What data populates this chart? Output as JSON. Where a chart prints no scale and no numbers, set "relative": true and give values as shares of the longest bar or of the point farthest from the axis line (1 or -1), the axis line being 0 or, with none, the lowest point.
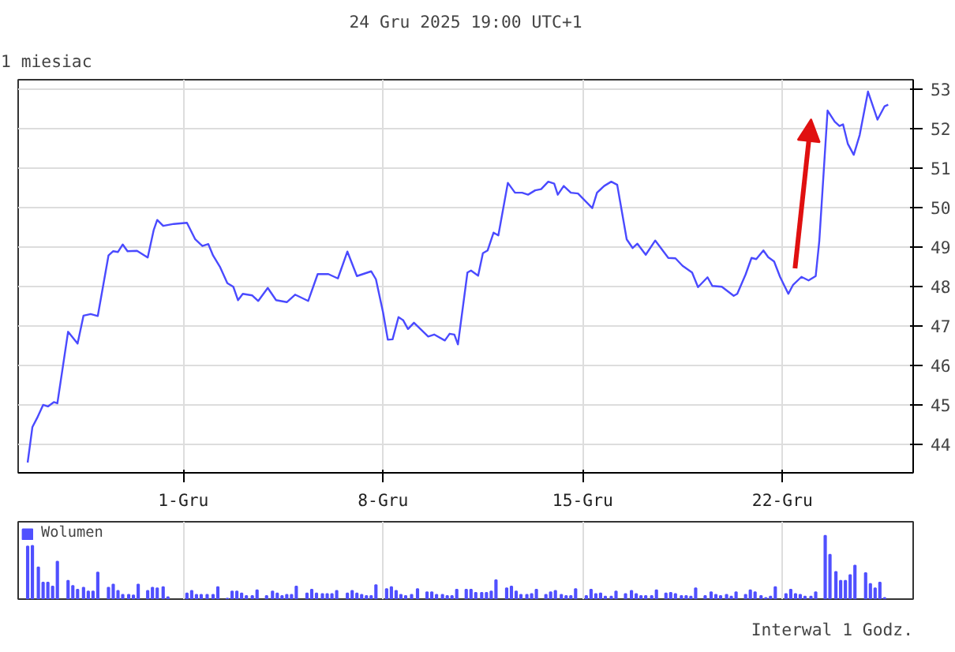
{
  "chart_data": [
    {
      "type": "line",
      "title": "1 miesiac",
      "subtitle": "24 Gru 2025 19:00 UTC+1",
      "color": "#4a4aff",
      "x": [
        "2025-11-25T13:00",
        "2025-11-25T17:00",
        "2025-11-25T21:00",
        "2025-11-26T02:00",
        "2025-11-26T06:00",
        "2025-11-26T11:00",
        "2025-11-26T14:00",
        "2025-11-26T23:00",
        "2025-11-27T07:00",
        "2025-11-27T12:00",
        "2025-11-27T18:00",
        "2025-11-28T00:00",
        "2025-11-28T09:00",
        "2025-11-28T13:00",
        "2025-11-28T17:00",
        "2025-11-28T21:00",
        "2025-11-29T01:00",
        "2025-11-29T09:00",
        "2025-11-29T18:00",
        "2025-11-29T23:00",
        "2025-11-30T02:00",
        "2025-11-30T07:00",
        "2025-11-30T16:00",
        "2025-12-01T03:00",
        "2025-12-01T10:00",
        "2025-12-01T16:00",
        "2025-12-01T21:00",
        "2025-12-02T01:00",
        "2025-12-02T07:00",
        "2025-12-02T13:00",
        "2025-12-02T18:00",
        "2025-12-02T22:00",
        "2025-12-03T02:00",
        "2025-12-03T10:00",
        "2025-12-03T15:00",
        "2025-12-03T23:00",
        "2025-12-04T06:00",
        "2025-12-04T15:00",
        "2025-12-04T22:00",
        "2025-12-05T09:00",
        "2025-12-05T17:00",
        "2025-12-06T02:00",
        "2025-12-06T10:00",
        "2025-12-06T18:00",
        "2025-12-07T02:00",
        "2025-12-07T14:00",
        "2025-12-07T18:00",
        "2025-12-08T00:00",
        "2025-12-08T04:00",
        "2025-12-08T08:00",
        "2025-12-08T13:00",
        "2025-12-08T17:00",
        "2025-12-08T21:00",
        "2025-12-09T02:00",
        "2025-12-09T14:00",
        "2025-12-09T19:00",
        "2025-12-10T04:00",
        "2025-12-10T08:00",
        "2025-12-10T12:00",
        "2025-12-10T15:00",
        "2025-12-10T23:00",
        "2025-12-11T02:00",
        "2025-12-11T08:00",
        "2025-12-11T12:00",
        "2025-12-11T16:00",
        "2025-12-11T21:00",
        "2025-12-12T01:00",
        "2025-12-12T09:00",
        "2025-12-12T15:00",
        "2025-12-12T21:00",
        "2025-12-13T02:00",
        "2025-12-13T08:00",
        "2025-12-13T13:00",
        "2025-12-13T19:00",
        "2025-12-14T00:00",
        "2025-12-14T03:00",
        "2025-12-14T08:00",
        "2025-12-14T14:00",
        "2025-12-14T20:00",
        "2025-12-15T08:00",
        "2025-12-15T12:00",
        "2025-12-15T18:00",
        "2025-12-16T00:00",
        "2025-12-16T05:00",
        "2025-12-16T13:00",
        "2025-12-16T18:00",
        "2025-12-16T22:00",
        "2025-12-17T05:00",
        "2025-12-17T13:00",
        "2025-12-18T00:00",
        "2025-12-18T06:00",
        "2025-12-18T12:00",
        "2025-12-18T20:00",
        "2025-12-19T01:00",
        "2025-12-19T09:00",
        "2025-12-19T13:00",
        "2025-12-19T21:00",
        "2025-12-20T07:00",
        "2025-12-20T10:00",
        "2025-12-20T17:00",
        "2025-12-20T22:00",
        "2025-12-21T02:00",
        "2025-12-21T08:00",
        "2025-12-21T12:00",
        "2025-12-21T17:00",
        "2025-12-21T22:00",
        "2025-12-22T05:00",
        "2025-12-22T09:00",
        "2025-12-22T16:00",
        "2025-12-22T22:00",
        "2025-12-23T04:00",
        "2025-12-23T07:00",
        "2025-12-23T14:00",
        "2025-12-23T20:00",
        "2025-12-24T00:00",
        "2025-12-24T03:00",
        "2025-12-24T07:00",
        "2025-12-24T12:00",
        "2025-12-24T17:00",
        "2025-12-25T00:00",
        "2025-12-25T08:00",
        "2025-12-25T14:00",
        "2025-12-25T17:00"
      ],
      "values": [
        43.55,
        44.45,
        44.68,
        45.01,
        44.97,
        45.08,
        45.05,
        46.86,
        46.56,
        47.27,
        47.31,
        47.26,
        48.79,
        48.9,
        48.88,
        49.07,
        48.9,
        48.91,
        48.74,
        49.43,
        49.69,
        49.54,
        49.59,
        49.62,
        49.2,
        49.03,
        49.08,
        48.79,
        48.49,
        48.09,
        48.0,
        47.66,
        47.82,
        47.78,
        47.64,
        47.97,
        47.66,
        47.61,
        47.8,
        47.64,
        48.32,
        48.32,
        48.21,
        48.89,
        48.27,
        48.39,
        48.19,
        47.35,
        46.66,
        46.67,
        47.23,
        47.15,
        46.93,
        47.09,
        46.74,
        46.79,
        46.64,
        46.81,
        46.79,
        46.54,
        48.36,
        48.41,
        48.28,
        48.85,
        48.92,
        49.37,
        49.3,
        50.63,
        50.38,
        50.38,
        50.33,
        50.44,
        50.47,
        50.66,
        50.61,
        50.33,
        50.55,
        50.38,
        50.36,
        49.99,
        50.38,
        50.55,
        50.66,
        50.58,
        49.2,
        48.98,
        49.09,
        48.81,
        49.17,
        48.73,
        48.72,
        48.53,
        48.36,
        47.99,
        48.24,
        48.02,
        48.0,
        47.77,
        47.82,
        48.31,
        48.73,
        48.7,
        48.92,
        48.75,
        48.64,
        48.25,
        47.82,
        48.05,
        48.25,
        48.16,
        48.27,
        49.15,
        52.46,
        52.18,
        52.07,
        52.11,
        51.62,
        51.34,
        51.84,
        52.94,
        52.23,
        52.57,
        52.61
      ],
      "xlim": [
        "2025-11-25T05:00",
        "2025-12-26T14:00"
      ],
      "xticks": [
        {
          "value": "2025-12-01",
          "label": "1-Gru"
        },
        {
          "value": "2025-12-08",
          "label": "8-Gru"
        },
        {
          "value": "2025-12-15",
          "label": "15-Gru"
        },
        {
          "value": "2025-12-22",
          "label": "22-Gru"
        }
      ],
      "ylim": [
        43.29,
        53.24
      ],
      "yticks": [
        44,
        45,
        46,
        47,
        48,
        49,
        50,
        51,
        52,
        53
      ],
      "grid": true
    },
    {
      "type": "bar",
      "relative": true,
      "grid": "x",
      "legend": "top left",
      "tick_labels": false,
      "annotations": [
        "Interwal 1 Godz."
      ],
      "xlim": [
        "2025-11-25T05:00",
        "2025-12-26T14:00"
      ],
      "xticks": [
        {
          "value": "2025-12-01",
          "label": null
        },
        {
          "value": "2025-12-08",
          "label": null
        },
        {
          "value": "2025-12-15",
          "label": null
        },
        {
          "value": "2025-12-22",
          "label": null
        }
      ],
      "x": [
        "2025-11-25T13:00",
        "2025-11-25T17:00",
        "2025-11-25T22:00",
        "2025-11-26T02:00",
        "2025-11-26T06:00",
        "2025-11-26T10:00",
        "2025-11-26T14:00",
        "2025-11-26T23:00",
        "2025-11-27T03:00",
        "2025-11-27T07:00",
        "2025-11-27T12:00",
        "2025-11-27T16:00",
        "2025-11-27T20:00",
        "2025-11-28T00:00",
        "2025-11-28T09:00",
        "2025-11-28T13:00",
        "2025-11-28T17:00",
        "2025-11-28T21:00",
        "2025-11-29T02:00",
        "2025-11-29T06:00",
        "2025-11-29T10:00",
        "2025-11-29T18:00",
        "2025-11-29T22:00",
        "2025-11-30T02:00",
        "2025-11-30T07:00",
        "2025-11-30T11:00",
        "2025-12-01T03:00",
        "2025-12-01T07:00",
        "2025-12-01T11:00",
        "2025-12-01T15:00",
        "2025-12-01T20:00",
        "2025-12-02T01:00",
        "2025-12-02T05:00",
        "2025-12-02T13:00",
        "2025-12-02T17:00",
        "2025-12-02T21:00",
        "2025-12-03T01:00",
        "2025-12-03T05:00",
        "2025-12-03T10:00",
        "2025-12-03T14:00",
        "2025-12-03T22:00",
        "2025-12-04T03:00",
        "2025-12-04T07:00",
        "2025-12-04T11:00",
        "2025-12-04T15:00",
        "2025-12-04T19:00",
        "2025-12-04T23:00",
        "2025-12-05T08:00",
        "2025-12-05T12:00",
        "2025-12-05T16:00",
        "2025-12-05T21:00",
        "2025-12-06T01:00",
        "2025-12-06T05:00",
        "2025-12-06T09:00",
        "2025-12-06T18:00",
        "2025-12-06T22:00",
        "2025-12-07T02:00",
        "2025-12-07T06:00",
        "2025-12-07T10:00",
        "2025-12-07T14:00",
        "2025-12-07T18:00",
        "2025-12-08T03:00",
        "2025-12-08T07:00",
        "2025-12-08T11:00",
        "2025-12-08T15:00",
        "2025-12-08T19:00",
        "2025-12-09T00:00",
        "2025-12-09T05:00",
        "2025-12-09T13:00",
        "2025-12-09T17:00",
        "2025-12-09T21:00",
        "2025-12-10T02:00",
        "2025-12-10T06:00",
        "2025-12-10T10:00",
        "2025-12-10T14:00",
        "2025-12-10T22:00",
        "2025-12-11T02:00",
        "2025-12-11T06:00",
        "2025-12-11T11:00",
        "2025-12-11T15:00",
        "2025-12-11T19:00",
        "2025-12-11T23:00",
        "2025-12-12T08:00",
        "2025-12-12T12:00",
        "2025-12-12T16:00",
        "2025-12-12T20:00",
        "2025-12-13T01:00",
        "2025-12-13T05:00",
        "2025-12-13T09:00",
        "2025-12-13T17:00",
        "2025-12-13T21:00",
        "2025-12-14T01:00",
        "2025-12-14T06:00",
        "2025-12-14T10:00",
        "2025-12-14T14:00",
        "2025-12-14T18:00",
        "2025-12-15T03:00",
        "2025-12-15T07:00",
        "2025-12-15T11:00",
        "2025-12-15T15:00",
        "2025-12-15T19:00",
        "2025-12-16T00:00",
        "2025-12-16T04:00",
        "2025-12-16T12:00",
        "2025-12-16T17:00",
        "2025-12-16T21:00",
        "2025-12-17T01:00",
        "2025-12-17T05:00",
        "2025-12-17T10:00",
        "2025-12-17T14:00",
        "2025-12-17T22:00",
        "2025-12-18T02:00",
        "2025-12-18T06:00",
        "2025-12-18T11:00",
        "2025-12-18T15:00",
        "2025-12-18T19:00",
        "2025-12-18T23:00",
        "2025-12-19T07:00",
        "2025-12-19T12:00",
        "2025-12-19T16:00",
        "2025-12-19T20:00",
        "2025-12-20T01:00",
        "2025-12-20T05:00",
        "2025-12-20T09:00",
        "2025-12-20T17:00",
        "2025-12-20T21:00",
        "2025-12-21T01:00",
        "2025-12-21T06:00",
        "2025-12-21T10:00",
        "2025-12-21T14:00",
        "2025-12-21T18:00",
        "2025-12-22T03:00",
        "2025-12-22T07:00",
        "2025-12-22T11:00",
        "2025-12-22T15:00",
        "2025-12-22T19:00",
        "2025-12-23T00:00",
        "2025-12-23T04:00",
        "2025-12-23T12:00",
        "2025-12-23T16:00",
        "2025-12-23T21:00",
        "2025-12-24T01:00",
        "2025-12-24T05:00",
        "2025-12-24T09:00",
        "2025-12-24T13:00",
        "2025-12-24T22:00",
        "2025-12-25T02:00",
        "2025-12-25T06:00",
        "2025-12-25T10:00",
        "2025-12-25T14:00"
      ],
      "series": [
        {
          "name": "Wolumen",
          "color": "#5050ff",
          "values": [
            0.83,
            0.84,
            0.5,
            0.26,
            0.26,
            0.2,
            0.59,
            0.29,
            0.21,
            0.15,
            0.18,
            0.12,
            0.12,
            0.42,
            0.18,
            0.23,
            0.13,
            0.07,
            0.07,
            0.06,
            0.23,
            0.13,
            0.18,
            0.17,
            0.19,
            0.03,
            0.09,
            0.13,
            0.07,
            0.07,
            0.07,
            0.07,
            0.19,
            0.01,
            0.12,
            0.12,
            0.09,
            0.05,
            0.05,
            0.14,
            0.05,
            0.12,
            0.09,
            0.05,
            0.07,
            0.07,
            0.2,
            0.09,
            0.15,
            0.09,
            0.08,
            0.08,
            0.08,
            0.13,
            0.09,
            0.13,
            0.09,
            0.07,
            0.05,
            0.05,
            0.22,
            0.16,
            0.19,
            0.13,
            0.07,
            0.05,
            0.07,
            0.16,
            0.11,
            0.11,
            0.07,
            0.07,
            0.05,
            0.05,
            0.15,
            0.15,
            0.15,
            0.1,
            0.1,
            0.1,
            0.12,
            0.3,
            0.17,
            0.2,
            0.12,
            0.07,
            0.07,
            0.08,
            0.15,
            0.07,
            0.11,
            0.13,
            0.07,
            0.05,
            0.05,
            0.16,
            0.05,
            0.15,
            0.08,
            0.09,
            0.04,
            0.04,
            0.12,
            0.08,
            0.13,
            0.08,
            0.05,
            0.05,
            0.05,
            0.14,
            0.09,
            0.1,
            0.08,
            0.05,
            0.05,
            0.04,
            0.17,
            0.05,
            0.11,
            0.07,
            0.05,
            0.07,
            0.04,
            0.11,
            0.07,
            0.14,
            0.11,
            0.05,
            0.02,
            0.04,
            0.19,
            0.08,
            0.15,
            0.08,
            0.07,
            0.04,
            0.04,
            0.11,
            1.0,
            0.7,
            0.43,
            0.29,
            0.29,
            0.38,
            0.53,
            0.41,
            0.24,
            0.17,
            0.26,
            0.02
          ]
        }
      ]
    }
  ]
}
